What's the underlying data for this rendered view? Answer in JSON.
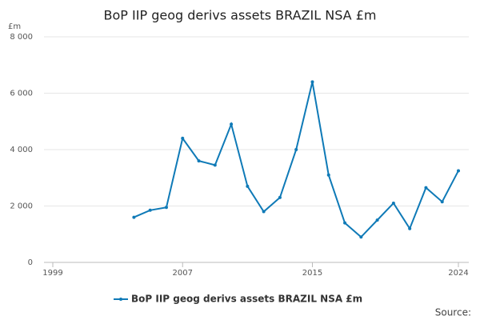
{
  "chart_data": {
    "type": "line",
    "title": "BoP IIP geog derivs assets BRAZIL NSA £m",
    "y_unit": "£m",
    "source": "Source:",
    "x": [
      2004,
      2005,
      2006,
      2007,
      2008,
      2009,
      2010,
      2011,
      2012,
      2013,
      2014,
      2015,
      2016,
      2017,
      2018,
      2019,
      2020,
      2021,
      2022,
      2023,
      2024
    ],
    "series": [
      {
        "name": "BoP IIP geog derivs assets BRAZIL NSA £m",
        "color": "#0f7ab7",
        "values": [
          1600,
          1850,
          1950,
          4400,
          3600,
          3450,
          4900,
          2700,
          1800,
          2300,
          4000,
          6400,
          3100,
          1400,
          900,
          1500,
          2100,
          1200,
          2650,
          2150,
          3250
        ]
      }
    ],
    "xlim": [
      1999,
      2024
    ],
    "xticks": [
      1999,
      2007,
      2015,
      2024
    ],
    "ylim": [
      0,
      8000
    ],
    "yticks": [
      0,
      {
        "value": 2000,
        "label": "2 000"
      },
      {
        "value": 4000,
        "label": "4 000"
      },
      {
        "value": 6000,
        "label": "6 000"
      },
      {
        "value": 8000,
        "label": "8 000"
      }
    ],
    "grid": true,
    "legend": "bottom"
  }
}
